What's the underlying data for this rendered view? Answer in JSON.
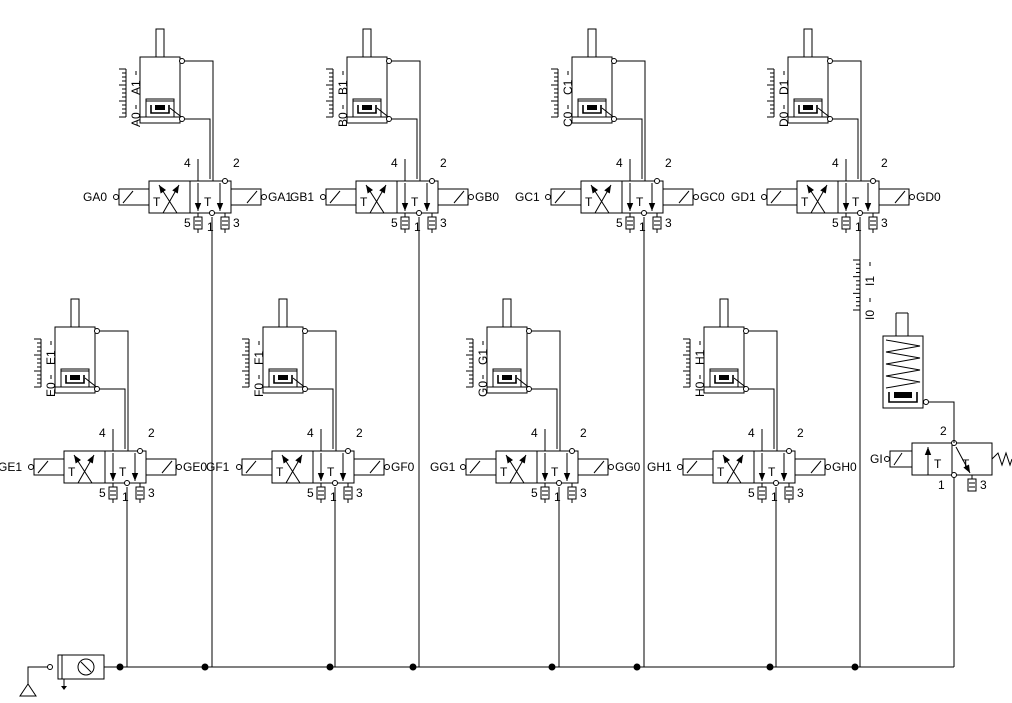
{
  "cylinders": [
    {
      "id": "A",
      "label_low": "A0",
      "label_high": "A1"
    },
    {
      "id": "B",
      "label_low": "B0",
      "label_high": "B1"
    },
    {
      "id": "C",
      "label_low": "C0",
      "label_high": "C1"
    },
    {
      "id": "D",
      "label_low": "D0",
      "label_high": "D1"
    },
    {
      "id": "E",
      "label_low": "E0",
      "label_high": "E1"
    },
    {
      "id": "F",
      "label_low": "F0",
      "label_high": "F1"
    },
    {
      "id": "G",
      "label_low": "G0",
      "label_high": "G1"
    },
    {
      "id": "H",
      "label_low": "H0",
      "label_high": "H1"
    },
    {
      "id": "I",
      "label_low": "I0",
      "label_high": "I1"
    }
  ],
  "valves": [
    {
      "id": "A",
      "left_label": "GA0",
      "right_label": "GA1"
    },
    {
      "id": "B",
      "left_label": "GB1",
      "right_label": "GB0"
    },
    {
      "id": "C",
      "left_label": "GC1",
      "right_label": "GC0"
    },
    {
      "id": "D",
      "left_label": "GD1",
      "right_label": "GD0"
    },
    {
      "id": "E",
      "left_label": "GE1",
      "right_label": "GE0"
    },
    {
      "id": "F",
      "left_label": "GF1",
      "right_label": "GF0"
    },
    {
      "id": "G",
      "left_label": "GG1",
      "right_label": "GG0"
    },
    {
      "id": "H",
      "left_label": "GH1",
      "right_label": "GH0"
    }
  ],
  "valve_I": {
    "left_label": "GI",
    "port_out": "2",
    "port_in": "1",
    "port_exh": "3"
  },
  "ports": {
    "p4": "4",
    "p2": "2",
    "p5": "5",
    "p1": "1",
    "p3": "3",
    "t": "T"
  }
}
